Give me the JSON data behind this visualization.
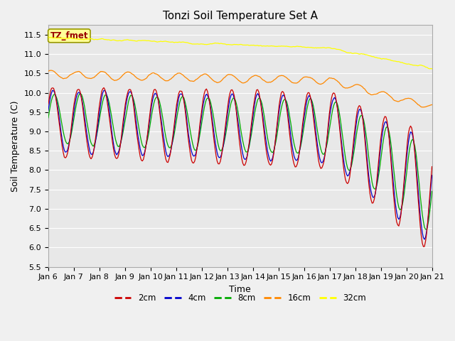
{
  "title": "Tonzi Soil Temperature Set A",
  "xlabel": "Time",
  "ylabel": "Soil Temperature (C)",
  "ylim": [
    5.5,
    11.75
  ],
  "xlim": [
    0,
    15
  ],
  "x_tick_labels": [
    "Jan 6",
    "Jan 7",
    "Jan 8",
    "Jan 9",
    "Jan 10",
    "Jan 11",
    "Jan 12",
    "Jan 13",
    "Jan 14",
    "Jan 15",
    "Jan 16",
    "Jan 17",
    "Jan 18",
    "Jan 19",
    "Jan 20",
    "Jan 21"
  ],
  "colors": {
    "2cm": "#cc0000",
    "4cm": "#0000cc",
    "8cm": "#00aa00",
    "16cm": "#ff8800",
    "32cm": "#ffff00"
  },
  "legend_label": "TZ_fmet",
  "legend_box_color": "#ffff99",
  "legend_box_edge": "#999900",
  "background_color": "#e8e8e8",
  "grid_color": "#ffffff",
  "title_fontsize": 11,
  "axis_label_fontsize": 9,
  "tick_fontsize": 8
}
